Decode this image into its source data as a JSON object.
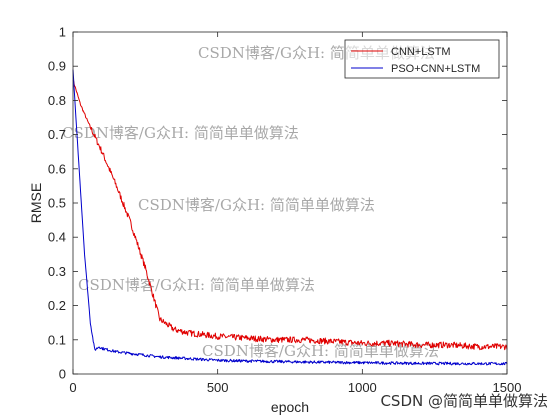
{
  "chart_data": {
    "type": "line",
    "title": "",
    "xlabel": "epoch",
    "ylabel": "RMSE",
    "xlim": [
      0,
      1500
    ],
    "ylim": [
      0,
      1
    ],
    "xticks": [
      0,
      500,
      1000,
      1500
    ],
    "yticks": [
      0,
      0.1,
      0.2,
      0.3,
      0.4,
      0.5,
      0.6,
      0.7,
      0.8,
      0.9,
      1
    ],
    "grid": false,
    "legend_position": "top-right",
    "series": [
      {
        "name": "CNN+LSTM",
        "color": "#e00000",
        "x": [
          0,
          25,
          50,
          100,
          150,
          200,
          250,
          300,
          350,
          400,
          500,
          600,
          700,
          800,
          900,
          1000,
          1100,
          1200,
          1300,
          1400,
          1500
        ],
        "y": [
          0.86,
          0.79,
          0.74,
          0.65,
          0.55,
          0.44,
          0.31,
          0.16,
          0.13,
          0.12,
          0.11,
          0.105,
          0.1,
          0.1,
          0.095,
          0.09,
          0.09,
          0.085,
          0.085,
          0.08,
          0.08
        ]
      },
      {
        "name": "PSO+CNN+LSTM",
        "color": "#0000cc",
        "x": [
          0,
          10,
          25,
          40,
          60,
          75,
          90,
          100,
          150,
          200,
          300,
          400,
          500,
          600,
          800,
          1000,
          1200,
          1500
        ],
        "y": [
          0.89,
          0.75,
          0.55,
          0.35,
          0.15,
          0.07,
          0.08,
          0.075,
          0.065,
          0.06,
          0.05,
          0.045,
          0.04,
          0.038,
          0.035,
          0.033,
          0.031,
          0.03
        ]
      }
    ]
  },
  "watermarks": [
    "CSDN博客/G众H: 简简单单做算法",
    "CSDN博客/G众H: 简简单单做算法",
    "CSDN博客/G众H: 简简单单做算法",
    "CSDN博客/G众H: 简简单单做算法",
    "CSDN博客/G众H: 简简单单做算法"
  ],
  "credit": "CSDN @简简单单做算法"
}
